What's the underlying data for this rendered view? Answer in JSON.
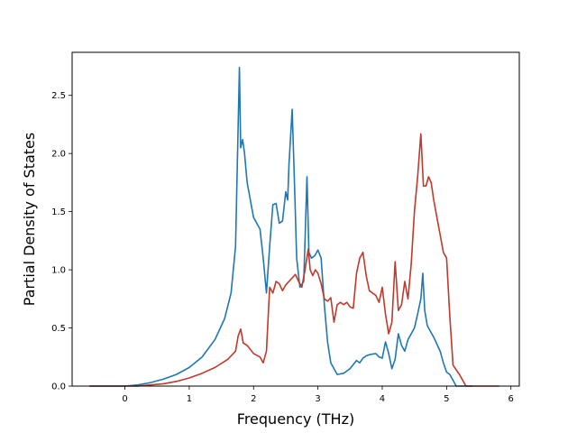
{
  "chart_data": {
    "type": "line",
    "title": "",
    "xlabel": "Frequency (THz)",
    "ylabel": "Partial Density of States",
    "xlim": [
      -0.82,
      6.13
    ],
    "ylim": [
      0.0,
      2.87
    ],
    "xticks": [
      0,
      1,
      2,
      3,
      4,
      5,
      6
    ],
    "yticks": [
      0.0,
      0.5,
      1.0,
      1.5,
      2.0,
      2.5
    ],
    "xtick_labels": [
      "0",
      "1",
      "2",
      "3",
      "4",
      "5",
      "6"
    ],
    "ytick_labels": [
      "0.0",
      "0.5",
      "1.0",
      "1.5",
      "2.0",
      "2.5"
    ],
    "grid": false,
    "legend": "none",
    "series": [
      {
        "color": "#1f77b4",
        "x": [
          -0.55,
          0.0,
          0.2,
          0.4,
          0.6,
          0.8,
          1.0,
          1.2,
          1.4,
          1.55,
          1.65,
          1.72,
          1.78,
          1.8,
          1.83,
          1.86,
          1.9,
          1.95,
          2.0,
          2.1,
          2.15,
          2.2,
          2.25,
          2.3,
          2.35,
          2.4,
          2.45,
          2.5,
          2.53,
          2.55,
          2.6,
          2.63,
          2.67,
          2.72,
          2.78,
          2.83,
          2.86,
          2.9,
          2.95,
          3.0,
          3.05,
          3.1,
          3.15,
          3.2,
          3.3,
          3.4,
          3.5,
          3.6,
          3.65,
          3.7,
          3.75,
          3.8,
          3.9,
          3.95,
          4.0,
          4.05,
          4.1,
          4.15,
          4.2,
          4.25,
          4.3,
          4.35,
          4.4,
          4.5,
          4.55,
          4.6,
          4.63,
          4.66,
          4.7,
          4.8,
          4.9,
          4.95,
          5.0,
          5.05,
          5.1,
          5.15,
          5.2,
          5.3,
          5.4
        ],
        "y": [
          0.0,
          0.0,
          0.01,
          0.03,
          0.06,
          0.1,
          0.16,
          0.25,
          0.4,
          0.58,
          0.8,
          1.2,
          2.74,
          2.05,
          2.12,
          2.0,
          1.75,
          1.6,
          1.45,
          1.35,
          1.1,
          0.8,
          1.2,
          1.56,
          1.57,
          1.4,
          1.42,
          1.67,
          1.6,
          1.9,
          2.38,
          1.85,
          1.1,
          0.85,
          0.9,
          1.8,
          1.15,
          1.1,
          1.12,
          1.17,
          1.1,
          0.7,
          0.38,
          0.2,
          0.1,
          0.11,
          0.15,
          0.22,
          0.2,
          0.24,
          0.26,
          0.27,
          0.28,
          0.25,
          0.24,
          0.38,
          0.28,
          0.15,
          0.23,
          0.45,
          0.35,
          0.3,
          0.4,
          0.5,
          0.62,
          0.75,
          0.97,
          0.65,
          0.52,
          0.42,
          0.3,
          0.2,
          0.12,
          0.1,
          0.05,
          0.0,
          0.0,
          0.0,
          0.0
        ]
      },
      {
        "color": "#c0392b",
        "x": [
          -0.55,
          0.0,
          0.2,
          0.4,
          0.6,
          0.8,
          1.0,
          1.2,
          1.4,
          1.6,
          1.72,
          1.76,
          1.8,
          1.84,
          1.9,
          2.0,
          2.1,
          2.15,
          2.2,
          2.25,
          2.3,
          2.35,
          2.4,
          2.45,
          2.5,
          2.55,
          2.6,
          2.65,
          2.7,
          2.75,
          2.8,
          2.85,
          2.88,
          2.92,
          2.96,
          3.0,
          3.05,
          3.1,
          3.15,
          3.2,
          3.25,
          3.3,
          3.35,
          3.4,
          3.45,
          3.5,
          3.55,
          3.6,
          3.65,
          3.7,
          3.75,
          3.8,
          3.85,
          3.9,
          3.95,
          4.0,
          4.05,
          4.1,
          4.15,
          4.2,
          4.25,
          4.3,
          4.35,
          4.4,
          4.45,
          4.5,
          4.55,
          4.6,
          4.64,
          4.68,
          4.72,
          4.76,
          4.8,
          4.9,
          4.95,
          5.0,
          5.05,
          5.1,
          5.2,
          5.3,
          5.5,
          5.82
        ],
        "y": [
          0.0,
          0.0,
          0.0,
          0.01,
          0.02,
          0.04,
          0.07,
          0.11,
          0.16,
          0.23,
          0.3,
          0.43,
          0.49,
          0.37,
          0.35,
          0.28,
          0.25,
          0.2,
          0.3,
          0.85,
          0.8,
          0.9,
          0.88,
          0.82,
          0.87,
          0.9,
          0.93,
          0.96,
          0.9,
          0.85,
          1.0,
          1.18,
          1.0,
          0.95,
          1.0,
          0.97,
          0.88,
          0.75,
          0.73,
          0.76,
          0.55,
          0.7,
          0.72,
          0.7,
          0.72,
          0.68,
          0.67,
          0.97,
          1.1,
          1.15,
          0.95,
          0.82,
          0.8,
          0.78,
          0.72,
          0.85,
          0.62,
          0.45,
          0.55,
          1.07,
          0.65,
          0.7,
          0.9,
          0.75,
          1.05,
          1.5,
          1.8,
          2.17,
          1.72,
          1.72,
          1.8,
          1.75,
          1.6,
          1.3,
          1.15,
          1.1,
          0.6,
          0.18,
          0.1,
          0.0,
          0.0,
          0.0
        ]
      }
    ]
  }
}
